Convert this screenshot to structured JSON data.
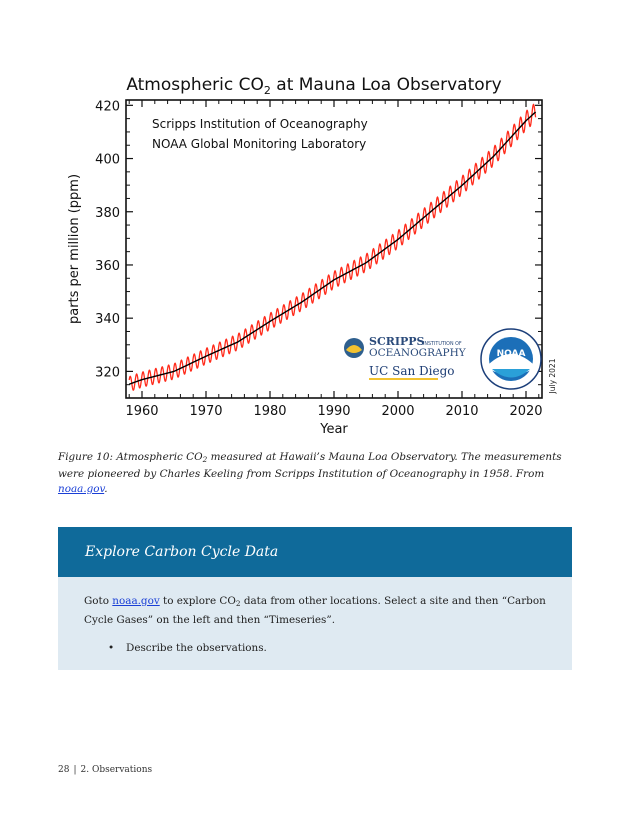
{
  "chart_data": {
    "type": "line",
    "title": "Atmospheric CO",
    "title_sub": "2",
    "title_rest": " at Mauna Loa Observatory",
    "xlabel": "Year",
    "ylabel": "parts per million (ppm)",
    "xlim": [
      1957.5,
      2022.5
    ],
    "ylim": [
      310,
      422
    ],
    "x_ticks": [
      1960,
      1970,
      1980,
      1990,
      2000,
      2010,
      2020
    ],
    "y_ticks": [
      320,
      340,
      360,
      380,
      400,
      420
    ],
    "annotations": [
      "Scripps Institution of Oceanography",
      "NOAA Global Monitoring Laboratory"
    ],
    "date_label": "July 2021",
    "series": [
      {
        "color": "#ff2a1a",
        "style": "monthly-seasonal",
        "x": [
          1958,
          1960,
          1965,
          1970,
          1975,
          1980,
          1985,
          1990,
          1995,
          2000,
          2005,
          2010,
          2015,
          2020,
          2021.5
        ],
        "y": [
          315.2,
          316.9,
          320.0,
          325.7,
          331.1,
          338.8,
          346.1,
          354.4,
          360.8,
          369.6,
          379.8,
          389.9,
          401.0,
          414.2,
          417.5
        ]
      },
      {
        "color": "#000000",
        "style": "trend",
        "x": [
          1958,
          1960,
          1965,
          1970,
          1975,
          1980,
          1985,
          1990,
          1995,
          2000,
          2005,
          2010,
          2015,
          2020,
          2021.5
        ],
        "y": [
          315.2,
          316.9,
          320.0,
          325.7,
          331.1,
          338.8,
          346.1,
          354.4,
          360.8,
          369.6,
          379.8,
          389.9,
          401.0,
          414.2,
          417.5
        ]
      }
    ],
    "logos": {
      "scripps_line1": "SCRIPPS",
      "scripps_line1b": "INSTITUTION OF",
      "scripps_line2": "OCEANOGRAPHY",
      "ucsd": "UC San Diego",
      "noaa": "NOAA"
    }
  },
  "caption": {
    "prefix": "Figure 10: Atmospheric CO",
    "sub": "2",
    "middle": " measured at Hawaii’s Mauna Loa Observatory. The measurements were pioneered by Charles Keeling from Scripps Institution of Oceanography in 1958. From ",
    "link": "noaa.gov",
    "suffix": "."
  },
  "box": {
    "title": "Explore Carbon Cycle Data",
    "p_prefix": "Goto ",
    "p_link": "noaa.gov",
    "p_middle": " to explore CO",
    "p_sub": "2",
    "p_rest": " data from other locations. Select a site and then “Carbon Cycle Gases” on the left and then “Timeseries”.",
    "bullets": [
      "Describe the observations."
    ]
  },
  "footer": {
    "page": "28",
    "sep": "|",
    "section": "2. Observations"
  }
}
